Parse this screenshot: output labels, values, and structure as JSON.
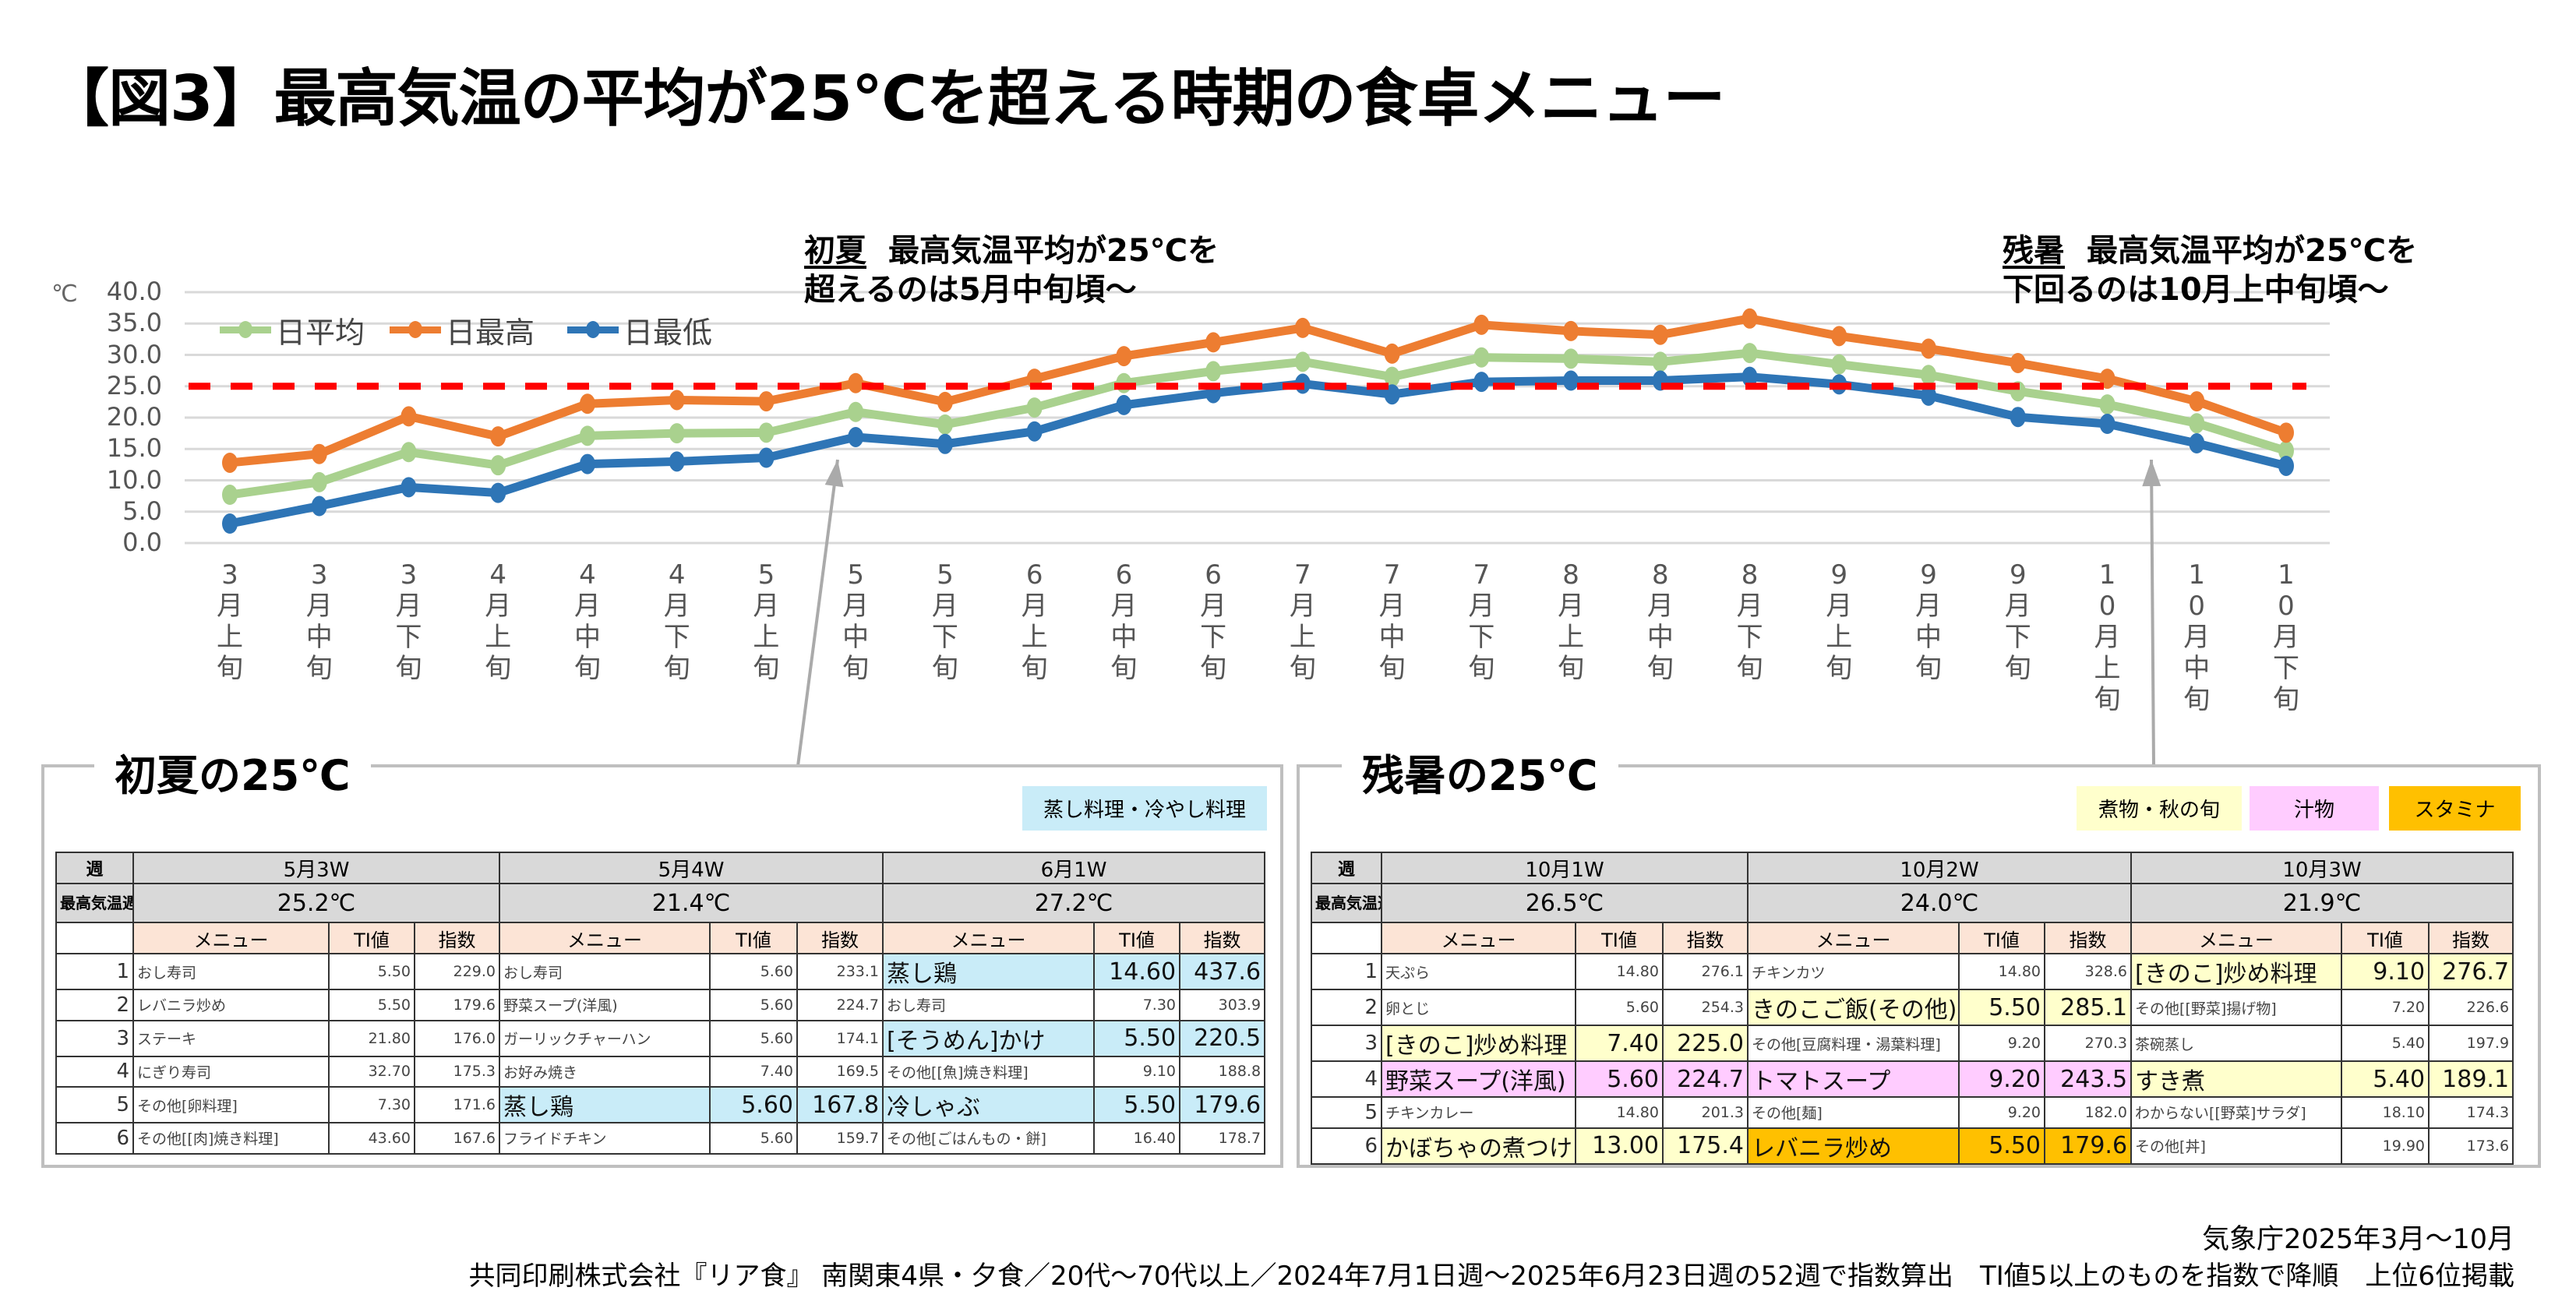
{
  "title": "【図3】最高気温の平均が25℃を超える時期の食卓メニュー",
  "chart_data": {
    "type": "line",
    "yunit": "℃",
    "ylim": [
      0,
      40
    ],
    "yticks": [
      "0.0",
      "5.0",
      "10.0",
      "15.0",
      "20.0",
      "25.0",
      "30.0",
      "35.0",
      "40.0"
    ],
    "grid": true,
    "legend_position": "top-left",
    "categories": [
      "3月上旬",
      "3月中旬",
      "3月下旬",
      "4月上旬",
      "4月中旬",
      "4月下旬",
      "5月上旬",
      "5月中旬",
      "5月下旬",
      "6月上旬",
      "6月中旬",
      "6月下旬",
      "7月上旬",
      "7月中旬",
      "7月下旬",
      "8月上旬",
      "8月中旬",
      "8月下旬",
      "9月上旬",
      "9月中旬",
      "9月下旬",
      "10月上旬",
      "10月中旬",
      "10月下旬"
    ],
    "series": [
      {
        "name": "日平均",
        "color": "#a9d18e",
        "values": [
          7.7,
          9.7,
          14.5,
          12.4,
          17.1,
          17.5,
          17.6,
          20.9,
          18.9,
          21.6,
          25.5,
          27.4,
          28.9,
          26.5,
          29.6,
          29.4,
          28.9,
          30.3,
          28.5,
          26.8,
          24.2,
          22.1,
          19.1,
          14.7
        ]
      },
      {
        "name": "日最高",
        "color": "#ed7d31",
        "values": [
          12.8,
          14.2,
          20.2,
          17.0,
          22.2,
          22.8,
          22.6,
          25.5,
          22.5,
          26.2,
          29.8,
          32.0,
          34.3,
          30.2,
          34.8,
          33.8,
          33.2,
          35.8,
          33.0,
          31.0,
          28.7,
          26.2,
          22.6,
          17.6
        ]
      },
      {
        "name": "日最低",
        "color": "#2e75b6",
        "values": [
          3.1,
          5.9,
          8.9,
          8.0,
          12.6,
          13.0,
          13.6,
          16.9,
          15.8,
          17.8,
          22.0,
          23.9,
          25.4,
          23.7,
          25.7,
          25.9,
          25.9,
          26.5,
          25.3,
          23.5,
          20.1,
          19.0,
          15.9,
          12.3
        ]
      }
    ],
    "reference_line": {
      "value": 25,
      "color": "#ff0000",
      "style": "dashed"
    },
    "annotations": [
      {
        "label": "初夏",
        "line1": "最高気温平均が25℃を",
        "line2": "超えるのは5月中旬頃～"
      },
      {
        "label": "残暑",
        "line1": "最高気温平均が25℃を",
        "line2": "下回るのは10月上中旬頃～"
      }
    ]
  },
  "highlight_colors": {
    "steam": "#c9ecf8",
    "nimono": "#ffffcc",
    "shiru": "#ffccff",
    "stamina": "#ffc000"
  },
  "panels": [
    {
      "title": "初夏の25℃",
      "tags": [
        {
          "key": "steam",
          "label": "蒸し料理・冷やし料理"
        }
      ],
      "row_header_week": "週",
      "row_header_temp": "最高気温週平均",
      "col_menu": "メニュー",
      "col_ti": "TI値",
      "col_index": "指数",
      "weeks": [
        {
          "week": "5月3W",
          "temp": "25.2℃",
          "rows": [
            {
              "rank": "1",
              "menu": "おし寿司",
              "ti": "5.50",
              "index": "229.0",
              "hl": ""
            },
            {
              "rank": "2",
              "menu": "レバニラ炒め",
              "ti": "5.50",
              "index": "179.6",
              "hl": ""
            },
            {
              "rank": "3",
              "menu": "ステーキ",
              "ti": "21.80",
              "index": "176.0",
              "hl": ""
            },
            {
              "rank": "4",
              "menu": "にぎり寿司",
              "ti": "32.70",
              "index": "175.3",
              "hl": ""
            },
            {
              "rank": "5",
              "menu": "その他[卵料理]",
              "ti": "7.30",
              "index": "171.6",
              "hl": ""
            },
            {
              "rank": "6",
              "menu": "その他[[肉]焼き料理]",
              "ti": "43.60",
              "index": "167.6",
              "hl": ""
            }
          ]
        },
        {
          "week": "5月4W",
          "temp": "21.4℃",
          "rows": [
            {
              "rank": "1",
              "menu": "おし寿司",
              "ti": "5.60",
              "index": "233.1",
              "hl": ""
            },
            {
              "rank": "2",
              "menu": "野菜スープ(洋風)",
              "ti": "5.60",
              "index": "224.7",
              "hl": ""
            },
            {
              "rank": "3",
              "menu": "ガーリックチャーハン",
              "ti": "5.60",
              "index": "174.1",
              "hl": ""
            },
            {
              "rank": "4",
              "menu": "お好み焼き",
              "ti": "7.40",
              "index": "169.5",
              "hl": ""
            },
            {
              "rank": "5",
              "menu": "蒸し鶏",
              "ti": "5.60",
              "index": "167.8",
              "hl": "steam"
            },
            {
              "rank": "6",
              "menu": "フライドチキン",
              "ti": "5.60",
              "index": "159.7",
              "hl": ""
            }
          ]
        },
        {
          "week": "6月1W",
          "temp": "27.2℃",
          "rows": [
            {
              "rank": "1",
              "menu": "蒸し鶏",
              "ti": "14.60",
              "index": "437.6",
              "hl": "steam"
            },
            {
              "rank": "2",
              "menu": "おし寿司",
              "ti": "7.30",
              "index": "303.9",
              "hl": ""
            },
            {
              "rank": "3",
              "menu": "[そうめん]かけ",
              "ti": "5.50",
              "index": "220.5",
              "hl": "steam"
            },
            {
              "rank": "4",
              "menu": "その他[[魚]焼き料理]",
              "ti": "9.10",
              "index": "188.8",
              "hl": ""
            },
            {
              "rank": "5",
              "menu": "冷しゃぶ",
              "ti": "5.50",
              "index": "179.6",
              "hl": "steam"
            },
            {
              "rank": "6",
              "menu": "その他[ごはんもの・餅]",
              "ti": "16.40",
              "index": "178.7",
              "hl": ""
            }
          ]
        }
      ]
    },
    {
      "title": "残暑の25℃",
      "tags": [
        {
          "key": "nimono",
          "label": "煮物・秋の旬"
        },
        {
          "key": "shiru",
          "label": "汁物"
        },
        {
          "key": "stamina",
          "label": "スタミナ"
        }
      ],
      "row_header_week": "週",
      "row_header_temp": "最高気温週平均",
      "col_menu": "メニュー",
      "col_ti": "TI値",
      "col_index": "指数",
      "weeks": [
        {
          "week": "10月1W",
          "temp": "26.5℃",
          "rows": [
            {
              "rank": "1",
              "menu": "天ぷら",
              "ti": "14.80",
              "index": "276.1",
              "hl": ""
            },
            {
              "rank": "2",
              "menu": "卵とじ",
              "ti": "5.60",
              "index": "254.3",
              "hl": ""
            },
            {
              "rank": "3",
              "menu": "[きのこ]炒め料理",
              "ti": "7.40",
              "index": "225.0",
              "hl": "nimono"
            },
            {
              "rank": "4",
              "menu": "野菜スープ(洋風)",
              "ti": "5.60",
              "index": "224.7",
              "hl": "shiru"
            },
            {
              "rank": "5",
              "menu": "チキンカレー",
              "ti": "14.80",
              "index": "201.3",
              "hl": ""
            },
            {
              "rank": "6",
              "menu": "かぼちゃの煮つけ",
              "ti": "13.00",
              "index": "175.4",
              "hl": "nimono"
            }
          ]
        },
        {
          "week": "10月2W",
          "temp": "24.0℃",
          "rows": [
            {
              "rank": "1",
              "menu": "チキンカツ",
              "ti": "14.80",
              "index": "328.6",
              "hl": ""
            },
            {
              "rank": "2",
              "menu": "きのこご飯(その他)",
              "ti": "5.50",
              "index": "285.1",
              "hl": "nimono"
            },
            {
              "rank": "3",
              "menu": "その他[豆腐料理・湯葉料理]",
              "ti": "9.20",
              "index": "270.3",
              "hl": ""
            },
            {
              "rank": "4",
              "menu": "トマトスープ",
              "ti": "9.20",
              "index": "243.5",
              "hl": "shiru"
            },
            {
              "rank": "5",
              "menu": "その他[麺]",
              "ti": "9.20",
              "index": "182.0",
              "hl": ""
            },
            {
              "rank": "6",
              "menu": "レバニラ炒め",
              "ti": "5.50",
              "index": "179.6",
              "hl": "stamina"
            }
          ]
        },
        {
          "week": "10月3W",
          "temp": "21.9℃",
          "rows": [
            {
              "rank": "1",
              "menu": "[きのこ]炒め料理",
              "ti": "9.10",
              "index": "276.7",
              "hl": "nimono"
            },
            {
              "rank": "2",
              "menu": "その他[[野菜]揚げ物]",
              "ti": "7.20",
              "index": "226.6",
              "hl": ""
            },
            {
              "rank": "3",
              "menu": "茶碗蒸し",
              "ti": "5.40",
              "index": "197.9",
              "hl": ""
            },
            {
              "rank": "4",
              "menu": "すき煮",
              "ti": "5.40",
              "index": "189.1",
              "hl": "nimono"
            },
            {
              "rank": "5",
              "menu": "わからない[[野菜]サラダ]",
              "ti": "18.10",
              "index": "174.3",
              "hl": ""
            },
            {
              "rank": "6",
              "menu": "その他[丼]",
              "ti": "19.90",
              "index": "173.6",
              "hl": ""
            }
          ]
        }
      ]
    }
  ],
  "source_line1": "気象庁2025年3月～10月",
  "source_line2": "共同印刷株式会社『リア食』 南関東4県・夕食／20代～70代以上／2024年7月1日週～2025年6月23日週の52週で指数算出　TI値5以上のものを指数で降順　上位6位掲載"
}
